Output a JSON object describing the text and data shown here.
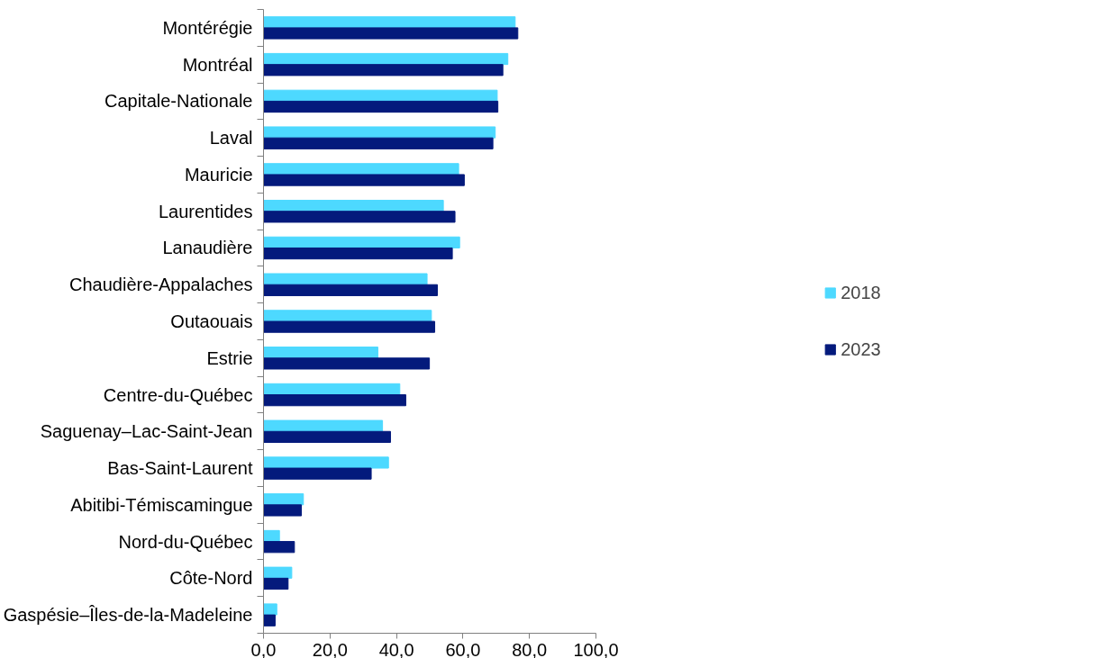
{
  "chart_data": {
    "type": "bar",
    "orientation": "horizontal",
    "categories": [
      "Montérégie",
      "Montréal",
      "Capitale-Nationale",
      "Laval",
      "Mauricie",
      "Laurentides",
      "Lanaudière",
      "Chaudière-Appalaches",
      "Outaouais",
      "Estrie",
      "Centre-du-Québec",
      "Saguenay–Lac-Saint-Jean",
      "Bas-Saint-Laurent",
      "Abitibi-Témiscamingue",
      "Nord-du-Québec",
      "Côte-Nord",
      "Gaspésie–Îles-de-la-Madeleine"
    ],
    "series": [
      {
        "name": "2018",
        "color": "#4dd9ff",
        "values": [
          75.7,
          73.5,
          70.3,
          69.7,
          58.7,
          54.1,
          59.0,
          49.2,
          50.5,
          34.4,
          41.0,
          35.8,
          37.6,
          12.0,
          4.8,
          8.5,
          4.0
        ]
      },
      {
        "name": "2023",
        "color": "#041a7c",
        "values": [
          76.5,
          72.0,
          70.5,
          69.0,
          60.4,
          57.6,
          56.8,
          52.3,
          51.5,
          49.9,
          42.8,
          38.2,
          32.4,
          11.4,
          9.3,
          7.4,
          3.5
        ]
      }
    ],
    "xlim": [
      0,
      100
    ],
    "xticks": [
      {
        "value": 0,
        "label": "0,0"
      },
      {
        "value": 20,
        "label": "20,0"
      },
      {
        "value": 40,
        "label": "40,0"
      },
      {
        "value": 60,
        "label": "60,0"
      },
      {
        "value": 80,
        "label": "80,0"
      },
      {
        "value": 100,
        "label": "100,0"
      }
    ],
    "grid": false,
    "legend": "right"
  }
}
